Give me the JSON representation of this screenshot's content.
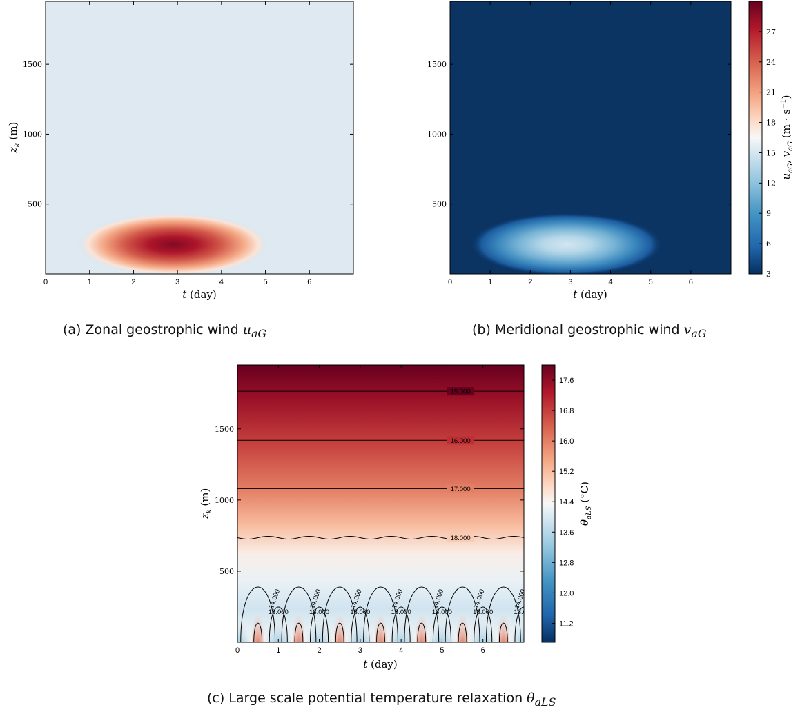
{
  "chart_data": [
    {
      "id": "a",
      "type": "heatmap",
      "caption": "(a) Zonal geostrophic wind",
      "caption_symbol": "u",
      "caption_sub": "aG",
      "xlabel": "t (day)",
      "ylabel": "z_k (m)",
      "xlim": [
        0,
        7
      ],
      "ylim": [
        0,
        1950
      ],
      "xticks": [
        "0",
        "1",
        "2",
        "3",
        "4",
        "5",
        "6"
      ],
      "yticks": [
        "500",
        "1000",
        "1500"
      ],
      "field": "Gaussian bump on a uniform background (~15 m s^-1) peaking (~29 m s^-1) near t = 3 day, z = 210 m",
      "background": 15,
      "peak": 29,
      "center_t": 2.9,
      "center_z": 210,
      "colormap": "RdBu_r"
    },
    {
      "id": "b",
      "type": "heatmap",
      "caption": "(b) Meridional geostrophic wind",
      "caption_symbol": "v",
      "caption_sub": "aG",
      "xlabel": "t (day)",
      "ylabel": "",
      "xlim": [
        0,
        7
      ],
      "ylim": [
        0,
        1950
      ],
      "xticks": [
        "0",
        "1",
        "2",
        "3",
        "4",
        "5",
        "6"
      ],
      "yticks": [
        "500",
        "1000",
        "1500"
      ],
      "background": 3,
      "peak": 15,
      "center_t": 2.9,
      "center_z": 210,
      "colormap": "RdBu_r",
      "colorbar": {
        "label": "u_aG, v_aG (m · s^-1)",
        "ticks": [
          "3",
          "6",
          "9",
          "12",
          "15",
          "18",
          "21",
          "24",
          "27"
        ],
        "range": [
          3,
          30
        ]
      }
    },
    {
      "id": "c",
      "type": "heatmap",
      "caption": "(c) Large scale potential temperature relaxation",
      "caption_symbol": "θ",
      "caption_sub": "aLS",
      "xlabel": "t (day)",
      "ylabel": "z_k (m)",
      "xlim": [
        0,
        7
      ],
      "ylim": [
        0,
        1950
      ],
      "xticks": [
        "0",
        "1",
        "2",
        "3",
        "4",
        "5",
        "6"
      ],
      "yticks": [
        "500",
        "1000",
        "1500"
      ],
      "colormap": "RdBu_r",
      "contour_labels": [
        "18.000",
        "17.000",
        "16.000",
        "15.000",
        "14.000",
        "13.000"
      ],
      "contours": [
        {
          "level": 18,
          "z": 1765
        },
        {
          "level": 17,
          "z": 1420
        },
        {
          "level": 16,
          "z": 1080
        },
        {
          "level": 15,
          "z": 735
        }
      ],
      "colorbar": {
        "label": "θ_aLS (°C)",
        "ticks": [
          "11.2",
          "12.0",
          "12.8",
          "13.6",
          "14.4",
          "15.2",
          "16.0",
          "16.8",
          "17.6"
        ],
        "range": [
          10.7,
          18.0
        ]
      }
    }
  ]
}
